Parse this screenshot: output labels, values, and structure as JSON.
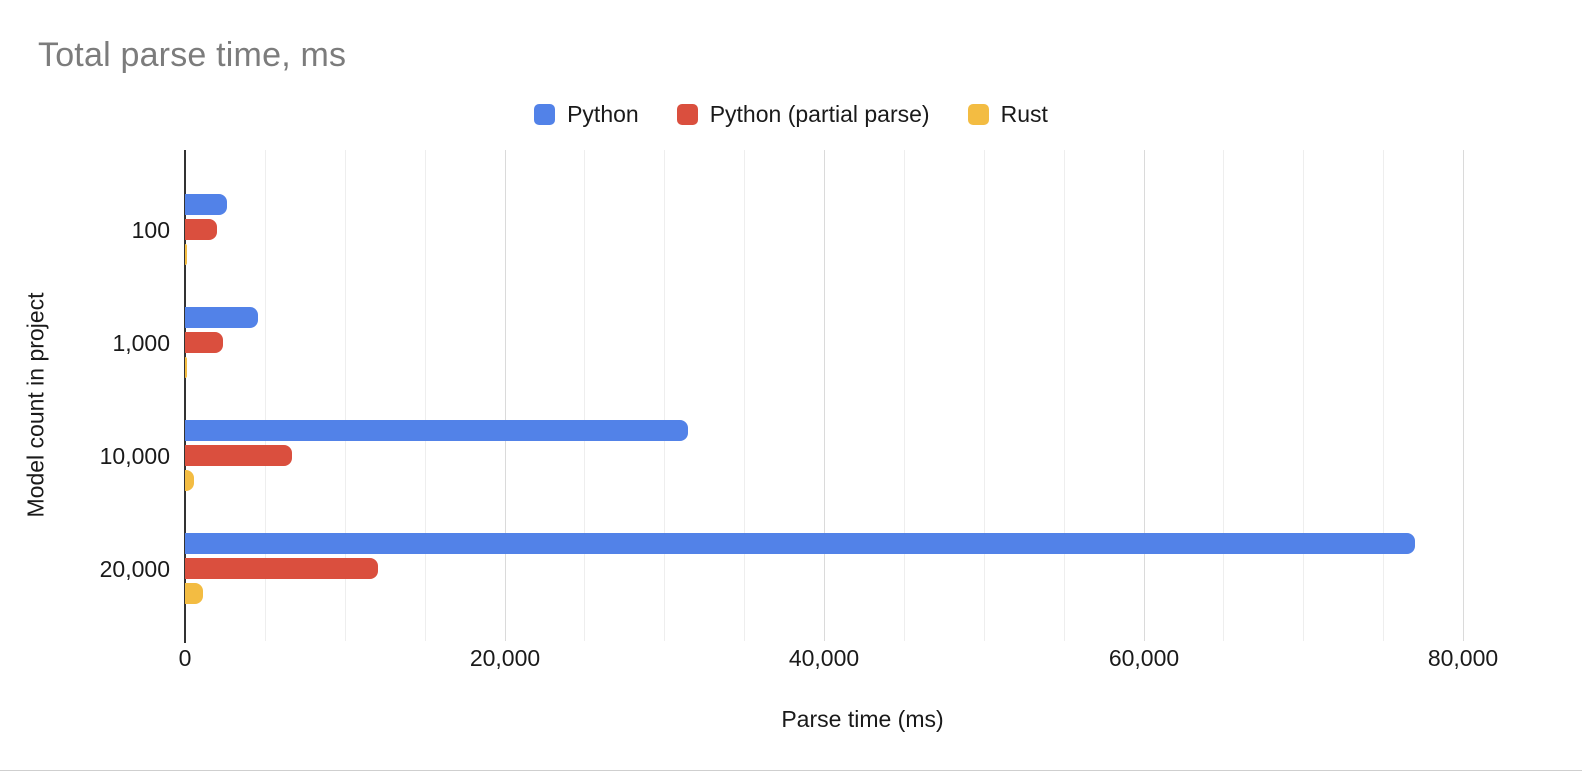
{
  "title": "Total parse time, ms",
  "colors": {
    "title_text": "#7c7c7c",
    "axis_line": "#333333",
    "gridline_minor": "#eeeeee",
    "gridline_major": "#dadada",
    "label_text": "#1a1a1a"
  },
  "chart_data": {
    "type": "bar",
    "orientation": "horizontal",
    "title": "Total parse time, ms",
    "xlabel": "Parse time (ms)",
    "ylabel": "Model count in project",
    "categories": [
      "100",
      "1,000",
      "10,000",
      "20,000"
    ],
    "series": [
      {
        "name": "Python",
        "color": "#5282E8",
        "values": [
          2600,
          4600,
          31500,
          77000
        ]
      },
      {
        "name": "Python (partial parse)",
        "color": "#DA4F3E",
        "values": [
          2000,
          2400,
          6700,
          12100
        ]
      },
      {
        "name": "Rust",
        "color": "#F3BC42",
        "values": [
          60,
          100,
          550,
          1100
        ]
      }
    ],
    "x_axis": {
      "min": 0,
      "max": 84800,
      "tick_interval": 20000,
      "gridline_interval": 5000,
      "ticks": [
        0,
        20000,
        40000,
        60000,
        80000
      ],
      "tick_labels": [
        "0",
        "20,000",
        "40,000",
        "60,000",
        "80,000"
      ]
    },
    "legend_position": "top",
    "grid": true
  }
}
